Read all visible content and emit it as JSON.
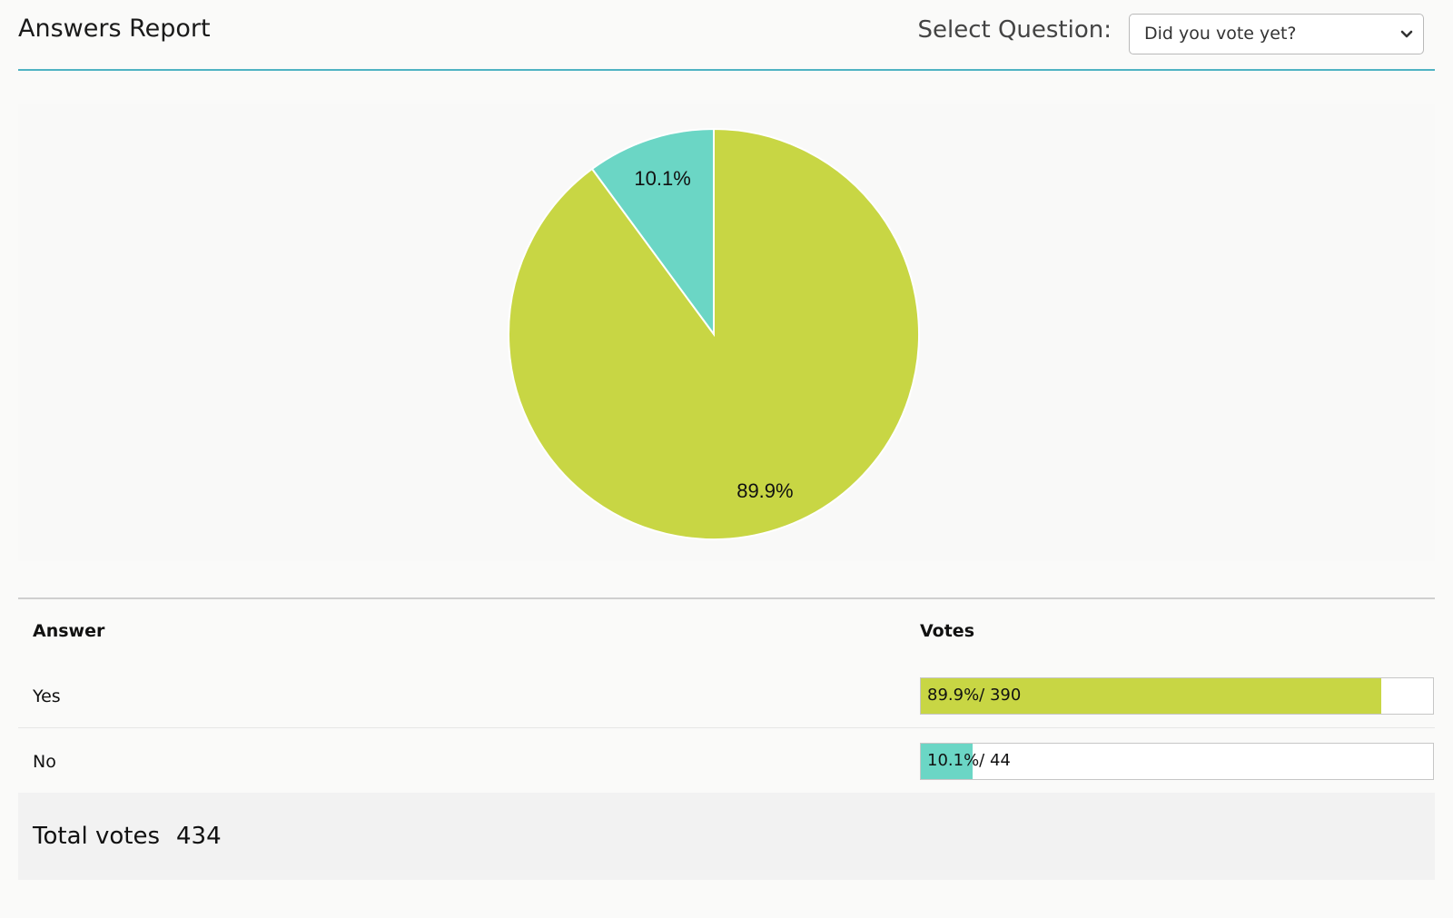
{
  "header": {
    "title": "Answers Report",
    "select_label": "Select Question:",
    "selected_question": "Did you vote yet?"
  },
  "icons": {
    "select_chevron": "chevron-down-icon"
  },
  "chart_data": {
    "type": "pie",
    "categories": [
      "Yes",
      "No"
    ],
    "values": [
      89.9,
      10.1
    ],
    "labels": [
      "89.9%",
      "10.1%"
    ],
    "colors": [
      "#c8d644",
      "#6bd6c5"
    ],
    "title": ""
  },
  "table": {
    "headers": {
      "answer": "Answer",
      "votes": "Votes"
    },
    "rows": [
      {
        "answer": "Yes",
        "percent": "89.9%",
        "count": "390",
        "vote_text": "89.9%/ 390",
        "fraction": 0.899,
        "color": "#c8d644"
      },
      {
        "answer": "No",
        "percent": "10.1%",
        "count": "44",
        "vote_text": "10.1%/ 44",
        "fraction": 0.101,
        "color": "#6bd6c5"
      }
    ]
  },
  "totals": {
    "label": "Total votes",
    "value": "434"
  }
}
